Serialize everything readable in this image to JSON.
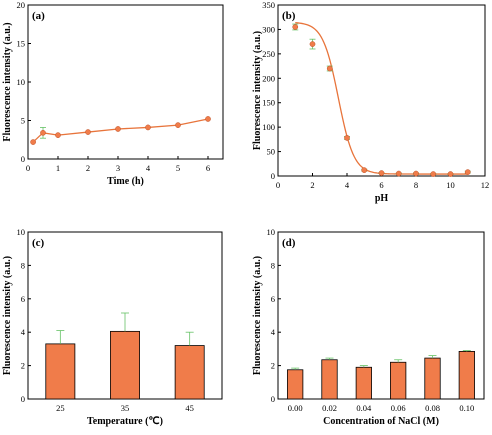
{
  "chart_data": [
    {
      "type": "line",
      "panel_label": "(a)",
      "xlabel": "Time (h)",
      "ylabel": "Fluorescence intensity (a.u.)",
      "xlim": [
        0,
        6.5
      ],
      "ylim": [
        0,
        20
      ],
      "xticks": [
        0,
        1,
        2,
        3,
        4,
        5,
        6
      ],
      "yticks": [
        0,
        5,
        10,
        15,
        20
      ],
      "x": [
        0.17,
        0.5,
        1,
        2,
        3,
        4,
        5,
        6
      ],
      "y": [
        2.2,
        3.4,
        3.1,
        3.5,
        3.9,
        4.1,
        4.4,
        5.2
      ],
      "error": [
        0,
        0.7,
        0,
        0,
        0,
        0,
        0,
        0
      ],
      "marker_color": "#f07c4a",
      "line_color": "#e8743b",
      "errorbar_color": "#66c266",
      "grid": false
    },
    {
      "type": "line",
      "panel_label": "(b)",
      "xlabel": "pH",
      "ylabel": "Fluorescence intensity (a.u.)",
      "xlim": [
        0,
        12
      ],
      "ylim": [
        0,
        350
      ],
      "xticks": [
        0,
        2,
        4,
        6,
        8,
        10,
        12
      ],
      "yticks": [
        0,
        50,
        100,
        150,
        200,
        250,
        300,
        350
      ],
      "x": [
        1,
        2,
        3,
        4,
        5,
        6,
        7,
        8,
        9,
        10,
        11
      ],
      "y": [
        305,
        270,
        220,
        78,
        12,
        6,
        5,
        5,
        4,
        4,
        8
      ],
      "error": [
        6,
        10,
        5,
        3,
        2,
        1,
        1,
        1,
        1,
        1,
        2
      ],
      "fit_curve": "sigmoidal",
      "marker_color": "#f07c4a",
      "line_color": "#e8743b",
      "errorbar_color": "#66c266",
      "grid": false
    },
    {
      "type": "bar",
      "panel_label": "(c)",
      "xlabel": "Temperature (℃)",
      "ylabel": "Fluorescence intensity (a.u.)",
      "ylim": [
        0,
        10
      ],
      "yticks": [
        0,
        2,
        4,
        6,
        8,
        10
      ],
      "categories": [
        "25",
        "35",
        "45"
      ],
      "values": [
        3.3,
        4.05,
        3.2
      ],
      "error": [
        0.8,
        1.1,
        0.8
      ],
      "bar_color": "#f07c4a",
      "errorbar_color": "#66c266",
      "grid": false
    },
    {
      "type": "bar",
      "panel_label": "(d)",
      "xlabel": "Concentration of NaCl (M)",
      "ylabel": "Fluorescence intensity (a.u.)",
      "ylim": [
        0,
        10
      ],
      "yticks": [
        0,
        2,
        4,
        6,
        8,
        10
      ],
      "categories": [
        "0.00",
        "0.02",
        "0.04",
        "0.06",
        "0.08",
        "0.10"
      ],
      "values": [
        1.75,
        2.35,
        1.9,
        2.2,
        2.45,
        2.85
      ],
      "error": [
        0.1,
        0.1,
        0.1,
        0.15,
        0.15,
        0.05
      ],
      "bar_color": "#f07c4a",
      "errorbar_color": "#66c266",
      "grid": false
    }
  ]
}
